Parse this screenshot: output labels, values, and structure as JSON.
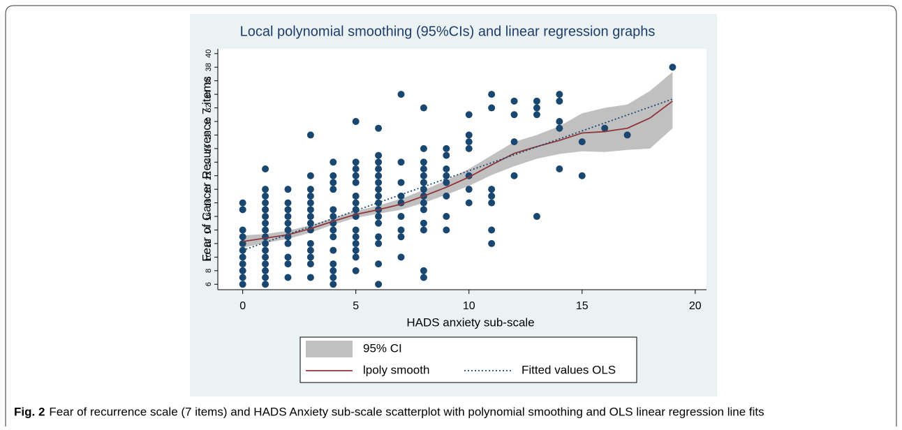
{
  "chart_data": {
    "type": "scatter",
    "title": "Local polynomial smoothing (95%CIs) and linear regression graphs",
    "x_label": "HADS anxiety sub-scale",
    "y_label": "Fear of Cancer Recurrence 7 items",
    "xlim": [
      -1.1,
      20.5
    ],
    "ylim": [
      5.2,
      40.7
    ],
    "xticks": [
      0,
      5,
      10,
      15,
      20
    ],
    "yticks": [
      6,
      8,
      10,
      12,
      14,
      16,
      18,
      20,
      22,
      24,
      26,
      28,
      30,
      32,
      34,
      36,
      38,
      40
    ],
    "points": {
      "color": "#1a476f",
      "x": [
        0,
        0,
        0,
        0,
        0,
        0,
        0,
        0,
        0,
        0,
        0,
        1,
        1,
        1,
        1,
        1,
        1,
        1,
        1,
        1,
        1,
        1,
        1,
        1,
        1,
        1,
        1,
        2,
        2,
        2,
        2,
        2,
        2,
        2,
        2,
        2,
        2,
        2,
        3,
        3,
        3,
        3,
        3,
        3,
        3,
        3,
        3,
        3,
        3,
        3,
        3,
        3,
        4,
        4,
        4,
        4,
        4,
        4,
        4,
        4,
        4,
        4,
        4,
        4,
        4,
        4,
        5,
        5,
        5,
        5,
        5,
        5,
        5,
        5,
        5,
        5,
        5,
        5,
        5,
        5,
        5,
        6,
        6,
        6,
        6,
        6,
        6,
        6,
        6,
        6,
        6,
        6,
        6,
        6,
        6,
        6,
        6,
        7,
        7,
        7,
        7,
        7,
        7,
        7,
        7,
        7,
        8,
        8,
        8,
        8,
        8,
        8,
        8,
        8,
        8,
        8,
        8,
        8,
        8,
        8,
        9,
        9,
        9,
        9,
        9,
        9,
        9,
        9,
        10,
        10,
        10,
        10,
        10,
        10,
        10,
        11,
        11,
        11,
        11,
        11,
        11,
        11,
        12,
        12,
        12,
        12,
        13,
        13,
        13,
        13,
        14,
        14,
        14,
        14,
        14,
        15,
        15,
        16,
        17,
        19
      ],
      "y": [
        6,
        7,
        8,
        9,
        10,
        11,
        12,
        13,
        14,
        17,
        18,
        6,
        7,
        8,
        9,
        10,
        11,
        12,
        13,
        14,
        15,
        16,
        17,
        18,
        19,
        20,
        23,
        7,
        9,
        10,
        12,
        13,
        14,
        15,
        16,
        17,
        18,
        20,
        7,
        9,
        10,
        11,
        12,
        14,
        15,
        16,
        17,
        18,
        19,
        20,
        22,
        28,
        6,
        7,
        8,
        9,
        11,
        13,
        14,
        15,
        16,
        17,
        20,
        21,
        22,
        24,
        8,
        10,
        11,
        12,
        13,
        14,
        16,
        17,
        18,
        19,
        21,
        22,
        23,
        24,
        30,
        6,
        9,
        12,
        13,
        15,
        16,
        17,
        18,
        19,
        20,
        21,
        22,
        23,
        24,
        25,
        29,
        10,
        13,
        14,
        16,
        18,
        19,
        21,
        24,
        34,
        7,
        8,
        14,
        15,
        17,
        18,
        19,
        20,
        21,
        22,
        23,
        24,
        26,
        32,
        14,
        16,
        19,
        21,
        22,
        23,
        25,
        26,
        18,
        20,
        22,
        26,
        27,
        28,
        31,
        12,
        14,
        18,
        19,
        20,
        32,
        34,
        22,
        27,
        31,
        33,
        16,
        31,
        32,
        33,
        23,
        29,
        30,
        33,
        34,
        22,
        27,
        29,
        28,
        38
      ]
    },
    "series": [
      {
        "name": "95% CI",
        "kind": "band",
        "color": "#c0c0c0",
        "x": [
          0,
          1,
          2,
          3,
          4,
          5,
          6,
          7,
          8,
          9,
          10,
          11,
          12,
          13,
          14,
          15,
          16,
          17,
          18,
          19
        ],
        "upper": [
          13.2,
          13.4,
          13.9,
          14.7,
          15.8,
          16.8,
          17.6,
          18.6,
          19.9,
          21.3,
          23,
          25,
          27,
          28,
          29.3,
          31.2,
          32,
          32.5,
          34.5,
          37.3
        ],
        "lower": [
          11.4,
          12.1,
          12.7,
          13.6,
          14.8,
          15.8,
          16.4,
          17,
          18,
          19.2,
          20.5,
          22.1,
          23.4,
          24.5,
          25.2,
          25.6,
          25.5,
          25.8,
          26,
          29
        ]
      },
      {
        "name": "lpoly smooth",
        "kind": "line",
        "color": "#90353b",
        "x": [
          0,
          1,
          2,
          3,
          4,
          5,
          6,
          7,
          8,
          9,
          10,
          11,
          12,
          13,
          14,
          15,
          16,
          17,
          18,
          19
        ],
        "values": [
          12.3,
          12.8,
          13.3,
          14.2,
          15.3,
          16.3,
          17,
          17.8,
          19,
          20.3,
          21.8,
          23.6,
          25.3,
          26.3,
          27.2,
          28.3,
          28.5,
          29,
          30.5,
          33
        ]
      },
      {
        "name": "Fitted values OLS",
        "kind": "dotted",
        "color": "#1a476f",
        "x": [
          0,
          19
        ],
        "values": [
          11,
          33.3
        ]
      }
    ]
  },
  "figure_label": "Fig. 2",
  "caption": "Fear of recurrence scale (7 items) and HADS Anxiety sub-scale scatterplot with polynomial smoothing and OLS linear regression line fits"
}
